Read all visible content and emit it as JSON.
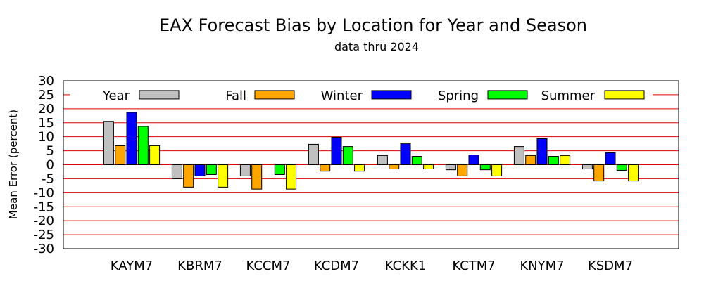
{
  "chart_data": {
    "type": "bar",
    "title": "EAX Forecast Bias by Location for Year and Season",
    "subtitle": "data thru 2024",
    "xlabel": "",
    "ylabel": "Mean Error (percent)",
    "ylim": [
      -30,
      30
    ],
    "yticks": [
      30,
      25,
      20,
      15,
      10,
      5,
      0,
      -5,
      -10,
      -15,
      -20,
      -25,
      -30
    ],
    "grid": true,
    "grid_color": "#e00000",
    "legend_position": "top",
    "categories": [
      "KAYM7",
      "KBRM7",
      "KCCM7",
      "KCDM7",
      "KCKK1",
      "KCTM7",
      "KNYM7",
      "KSDM7"
    ],
    "series": [
      {
        "name": "Year",
        "color": "#c0c0c0",
        "values": [
          15.5,
          -5,
          -4,
          7.3,
          3.3,
          -1.8,
          6.5,
          -1.5
        ]
      },
      {
        "name": "Fall",
        "color": "#ffa500",
        "values": [
          6.8,
          -8,
          -8.7,
          -2.3,
          -1.5,
          -4,
          3.3,
          -5.8
        ]
      },
      {
        "name": "Winter",
        "color": "#0000ff",
        "values": [
          18.7,
          -4,
          0,
          9.8,
          7.5,
          3.5,
          9.3,
          4.3
        ]
      },
      {
        "name": "Spring",
        "color": "#00ff00",
        "values": [
          13.7,
          -3.5,
          -3.5,
          6.5,
          3,
          -1.8,
          3,
          -2
        ]
      },
      {
        "name": "Summer",
        "color": "#ffff00",
        "values": [
          6.8,
          -8,
          -8.7,
          -2.3,
          -1.5,
          -4,
          3.3,
          -5.8
        ]
      }
    ]
  }
}
